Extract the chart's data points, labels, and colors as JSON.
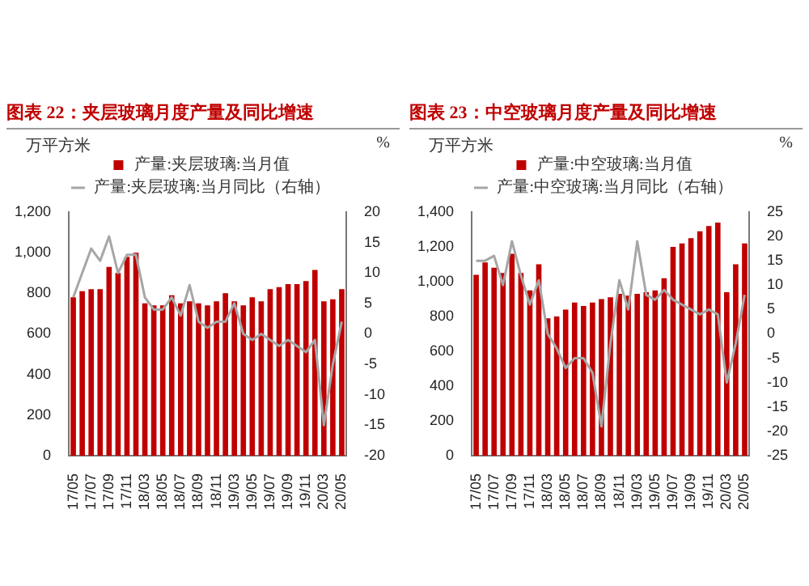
{
  "chart_data": [
    {
      "type": "bar",
      "title": "图表 22：夹层玻璃月度产量及同比增速",
      "ylabel": "万平方米",
      "y2label": "%",
      "legend": "top",
      "categories": [
        "17/05",
        null,
        "17/07",
        null,
        "17/09",
        null,
        "17/11",
        null,
        "18/03",
        null,
        "18/05",
        null,
        "18/07",
        null,
        "18/09",
        null,
        "18/11",
        null,
        "19/03",
        null,
        "19/05",
        null,
        "19/07",
        null,
        "19/09",
        null,
        "19/11",
        null,
        "20/03",
        null,
        "20/05"
      ],
      "series": [
        {
          "name": "产量:夹层玻璃:当月值",
          "color": "#c00000",
          "values": [
            780,
            810,
            820,
            820,
            930,
            900,
            980,
            1000,
            750,
            740,
            740,
            790,
            750,
            760,
            750,
            740,
            760,
            800,
            760,
            740,
            780,
            760,
            820,
            830,
            845,
            845,
            860,
            915,
            760,
            770,
            820
          ]
        },
        {
          "name": "产量:夹层玻璃:当月同比（右轴）",
          "type": "line",
          "axis": "y2",
          "color": "#a6a6a6",
          "values": [
            6,
            10,
            14,
            12,
            16,
            10,
            13,
            13,
            6,
            4,
            4,
            6,
            3,
            8,
            2,
            1,
            2,
            2,
            5,
            0,
            -1,
            0,
            -1,
            -2,
            -1,
            -2,
            -3,
            -1,
            -15,
            -5,
            2
          ]
        }
      ],
      "ylim": [
        0,
        1200
      ],
      "yticks": [
        0,
        200,
        400,
        600,
        800,
        {
          "value": 1000,
          "label": "1,000"
        },
        {
          "value": 1200,
          "label": "1,200"
        }
      ],
      "y2lim": [
        -20,
        20
      ],
      "y2ticks": [
        -20,
        -15,
        -10,
        -5,
        0,
        5,
        10,
        15,
        20
      ],
      "grid": false,
      "marker": "none"
    },
    {
      "type": "bar",
      "title": "图表 23：中空玻璃月度产量及同比增速",
      "ylabel": "万平方米",
      "y2label": "%",
      "legend": "top",
      "categories": [
        "17/05",
        null,
        "17/07",
        null,
        "17/09",
        null,
        "17/11",
        null,
        "18/03",
        null,
        "18/05",
        null,
        "18/07",
        null,
        "18/09",
        null,
        "18/11",
        null,
        "19/03",
        null,
        "19/05",
        null,
        "19/07",
        null,
        "19/09",
        null,
        "19/11",
        null,
        "20/03",
        null,
        "20/05"
      ],
      "series": [
        {
          "name": "产量:中空玻璃:当月值",
          "color": "#c00000",
          "values": [
            1040,
            1110,
            1080,
            1050,
            1160,
            1050,
            950,
            1100,
            790,
            800,
            840,
            880,
            860,
            880,
            900,
            910,
            930,
            920,
            930,
            940,
            950,
            1020,
            1200,
            1220,
            1250,
            1290,
            1320,
            1340,
            940,
            1100,
            1220
          ]
        },
        {
          "name": "产量:中空玻璃:当月同比（右轴）",
          "type": "line",
          "axis": "y2",
          "color": "#a6a6a6",
          "values": [
            15,
            15,
            16,
            10,
            19,
            12,
            6,
            11,
            0,
            -3,
            -7,
            -5,
            -5,
            -8,
            -19,
            -2,
            11,
            5,
            19,
            8,
            7,
            9,
            7,
            6,
            5,
            4,
            5,
            4,
            -10,
            -2,
            8
          ]
        }
      ],
      "ylim": [
        0,
        1400
      ],
      "yticks": [
        0,
        200,
        400,
        600,
        800,
        {
          "value": 1000,
          "label": "1,000"
        },
        {
          "value": 1200,
          "label": "1,200"
        },
        {
          "value": 1400,
          "label": "1,400"
        }
      ],
      "y2lim": [
        -25,
        25
      ],
      "y2ticks": [
        -25,
        -20,
        -15,
        -10,
        -5,
        0,
        5,
        10,
        15,
        20,
        25
      ],
      "grid": false,
      "marker": "none"
    }
  ]
}
